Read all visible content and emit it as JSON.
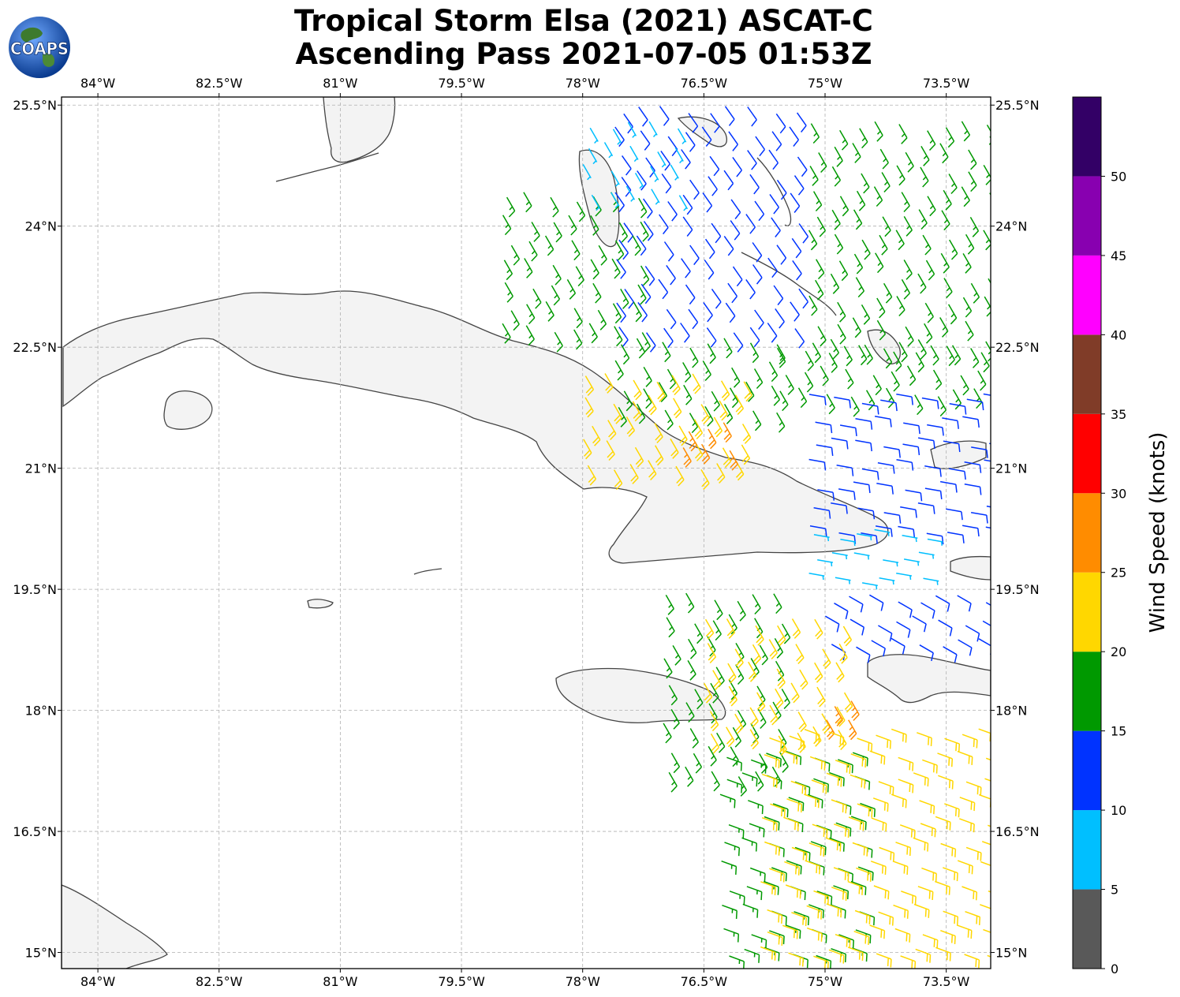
{
  "title": {
    "line1": "Tropical Storm Elsa (2021) ASCAT-C",
    "line2": "Ascending Pass 2021-07-05 01:53Z"
  },
  "logo": {
    "text": "COAPS",
    "icon": "globe-logo-icon"
  },
  "map": {
    "projection": "plate-carree",
    "lon_range": [
      -84.45,
      -72.95
    ],
    "lat_range": [
      14.8,
      25.6
    ],
    "lon_ticks": [
      -84,
      -82.5,
      -81,
      -79.5,
      -78,
      -76.5,
      -75,
      -73.5
    ],
    "lon_tick_labels": [
      "84°W",
      "82.5°W",
      "81°W",
      "79.5°W",
      "78°W",
      "76.5°W",
      "75°W",
      "73.5°W"
    ],
    "lat_ticks": [
      25.5,
      24,
      22.5,
      21,
      19.5,
      18,
      16.5,
      15
    ],
    "lat_tick_labels": [
      "25.5°N",
      "24°N",
      "22.5°N",
      "21°N",
      "19.5°N",
      "18°N",
      "16.5°N",
      "15°N"
    ],
    "gridlines": true,
    "land_fill": "#f4f4f4",
    "coast_color": "#444444"
  },
  "colorbar": {
    "label": "Wind Speed (knots)",
    "bounds": [
      0,
      5,
      10,
      15,
      20,
      25,
      30,
      35,
      40,
      45,
      50,
      55
    ],
    "tick_values": [
      0,
      5,
      10,
      15,
      20,
      25,
      30,
      35,
      40,
      45,
      50
    ],
    "tick_labels": [
      "0",
      "5",
      "10",
      "15",
      "20",
      "25",
      "30",
      "35",
      "40",
      "45",
      "50"
    ],
    "colors": [
      "#595959",
      "#00bfff",
      "#0033ff",
      "#009900",
      "#ffd700",
      "#ff8c00",
      "#ff0000",
      "#803c28",
      "#ff00ff",
      "#8800b0",
      "#330066"
    ]
  },
  "wind_regions": [
    {
      "name": "bahamas-north-green",
      "lon": [
        -75.2,
        -73.0
      ],
      "lat": [
        22.6,
        25.5
      ],
      "speed_kt": 17,
      "dir_deg": 150
    },
    {
      "name": "bahamas-blue",
      "lon": [
        -77.6,
        -75.2
      ],
      "lat": [
        22.8,
        25.5
      ],
      "speed_kt": 13,
      "dir_deg": 145
    },
    {
      "name": "andros-green",
      "lon": [
        -79.0,
        -77.2
      ],
      "lat": [
        22.8,
        24.6
      ],
      "speed_kt": 17,
      "dir_deg": 150
    },
    {
      "name": "florida-straits-lightblue",
      "lon": [
        -78.0,
        -76.8
      ],
      "lat": [
        24.5,
        25.5
      ],
      "speed_kt": 8,
      "dir_deg": 150
    },
    {
      "name": "cuba-north-green",
      "lon": [
        -77.6,
        -75.6
      ],
      "lat": [
        21.8,
        22.8
      ],
      "speed_kt": 18,
      "dir_deg": 150
    },
    {
      "name": "cuba-north-yellow",
      "lon": [
        -78.0,
        -76.0
      ],
      "lat": [
        21.1,
        22.4
      ],
      "speed_kt": 22,
      "dir_deg": 150
    },
    {
      "name": "cuba-coast-orange",
      "lon": [
        -76.8,
        -76.1
      ],
      "lat": [
        21.3,
        21.8
      ],
      "speed_kt": 27,
      "dir_deg": 150
    },
    {
      "name": "old-bahama-channel-green",
      "lon": [
        -75.6,
        -73.0
      ],
      "lat": [
        22.0,
        22.8
      ],
      "speed_kt": 17,
      "dir_deg": 150
    },
    {
      "name": "windward-blue",
      "lon": [
        -75.2,
        -73.0
      ],
      "lat": [
        20.3,
        22.0
      ],
      "speed_kt": 13,
      "dir_deg": 100
    },
    {
      "name": "windward-lightblue",
      "lon": [
        -75.2,
        -73.6
      ],
      "lat": [
        19.7,
        20.3
      ],
      "speed_kt": 8,
      "dir_deg": 100
    },
    {
      "name": "gonave-blue",
      "lon": [
        -75.0,
        -73.0
      ],
      "lat": [
        18.9,
        19.7
      ],
      "speed_kt": 13,
      "dir_deg": 120
    },
    {
      "name": "jamaica-east-green",
      "lon": [
        -77.0,
        -75.4
      ],
      "lat": [
        17.3,
        19.6
      ],
      "speed_kt": 17,
      "dir_deg": 150
    },
    {
      "name": "jamaica-east-yellow",
      "lon": [
        -76.5,
        -74.8
      ],
      "lat": [
        17.8,
        19.3
      ],
      "speed_kt": 22,
      "dir_deg": 150
    },
    {
      "name": "haiti-sw-orange",
      "lon": [
        -75.0,
        -74.5
      ],
      "lat": [
        17.9,
        18.4
      ],
      "speed_kt": 27,
      "dir_deg": 150
    },
    {
      "name": "caribbean-green",
      "lon": [
        -76.3,
        -74.6
      ],
      "lat": [
        14.8,
        17.5
      ],
      "speed_kt": 17,
      "dir_deg": 110
    },
    {
      "name": "caribbean-yellow",
      "lon": [
        -75.8,
        -73.0
      ],
      "lat": [
        14.8,
        17.9
      ],
      "speed_kt": 22,
      "dir_deg": 110
    }
  ]
}
